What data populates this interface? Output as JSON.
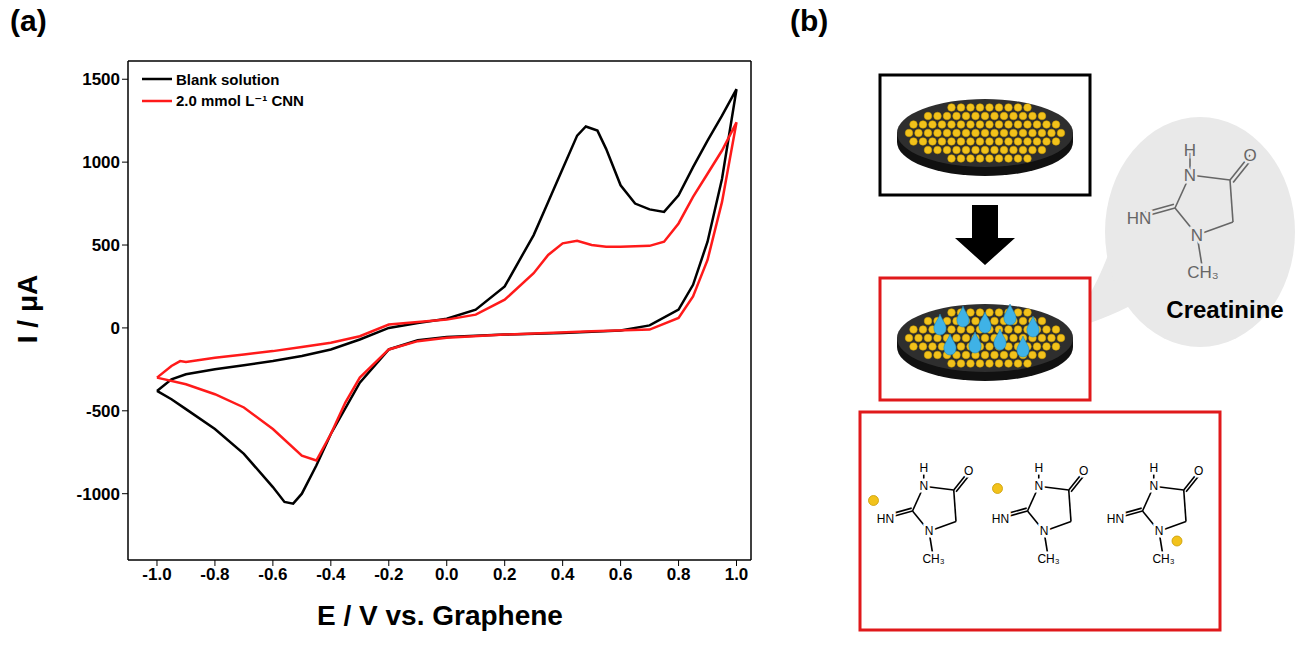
{
  "chart_data": {
    "type": "line",
    "title": "(a)",
    "x_label": "E / V vs. Graphene",
    "y_label": "I / μA",
    "xlim": [
      -1.1,
      1.05
    ],
    "ylim": [
      -1400,
      1610
    ],
    "xticks": [
      {
        "value": -1,
        "label": "-1.0"
      },
      {
        "value": -0.8,
        "label": "-0.8"
      },
      {
        "value": -0.6,
        "label": "-0.6"
      },
      {
        "value": -0.4,
        "label": "-0.4"
      },
      {
        "value": -0.2,
        "label": "-0.2"
      },
      {
        "value": 0,
        "label": "0.0"
      },
      {
        "value": 0.2,
        "label": "0.2"
      },
      {
        "value": 0.4,
        "label": "0.4"
      },
      {
        "value": 0.6,
        "label": "0.6"
      },
      {
        "value": 0.8,
        "label": "0.8"
      },
      {
        "value": 1,
        "label": "1.0"
      }
    ],
    "yticks": [
      -1000,
      -500,
      0,
      500,
      1000,
      1500
    ],
    "legend": "upper left",
    "series": [
      {
        "name": "Blank solution",
        "color": "#000000",
        "x": [
          -1.0,
          -0.95,
          -0.9,
          -0.8,
          -0.7,
          -0.6,
          -0.5,
          -0.4,
          -0.3,
          -0.2,
          -0.1,
          0.0,
          0.1,
          0.2,
          0.3,
          0.35,
          0.4,
          0.45,
          0.48,
          0.52,
          0.55,
          0.6,
          0.65,
          0.7,
          0.75,
          0.8,
          0.85,
          0.9,
          0.95,
          1.0,
          0.95,
          0.9,
          0.85,
          0.8,
          0.7,
          0.6,
          0.4,
          0.2,
          0.0,
          -0.1,
          -0.2,
          -0.3,
          -0.4,
          -0.45,
          -0.5,
          -0.53,
          -0.56,
          -0.6,
          -0.7,
          -0.8,
          -0.9,
          -0.95,
          -1.0
        ],
        "values": [
          -380,
          -310,
          -280,
          -250,
          -225,
          -200,
          -170,
          -130,
          -70,
          0,
          30,
          55,
          110,
          250,
          560,
          760,
          960,
          1160,
          1215,
          1190,
          1080,
          860,
          750,
          715,
          700,
          800,
          970,
          1130,
          1280,
          1440,
          900,
          520,
          260,
          110,
          15,
          -15,
          -30,
          -40,
          -55,
          -75,
          -130,
          -330,
          -640,
          -830,
          -1000,
          -1060,
          -1050,
          -960,
          -760,
          -610,
          -490,
          -430,
          -380
        ]
      },
      {
        "name": "2.0 mmol L⁻¹ CNN",
        "color": "#ff1a1a",
        "x": [
          -1.0,
          -0.95,
          -0.92,
          -0.9,
          -0.8,
          -0.7,
          -0.6,
          -0.5,
          -0.4,
          -0.3,
          -0.2,
          -0.1,
          0.0,
          0.1,
          0.2,
          0.3,
          0.35,
          0.4,
          0.45,
          0.5,
          0.55,
          0.6,
          0.7,
          0.75,
          0.8,
          0.85,
          0.9,
          0.95,
          1.0,
          0.95,
          0.9,
          0.85,
          0.8,
          0.7,
          0.5,
          0.2,
          0.0,
          -0.1,
          -0.2,
          -0.3,
          -0.35,
          -0.4,
          -0.45,
          -0.5,
          -0.6,
          -0.7,
          -0.8,
          -0.9,
          -1.0
        ],
        "values": [
          -300,
          -230,
          -200,
          -205,
          -180,
          -160,
          -140,
          -115,
          -90,
          -50,
          20,
          35,
          50,
          80,
          170,
          330,
          440,
          510,
          525,
          500,
          490,
          490,
          495,
          520,
          630,
          790,
          930,
          1070,
          1240,
          760,
          410,
          190,
          60,
          -10,
          -20,
          -40,
          -60,
          -80,
          -130,
          -300,
          -450,
          -640,
          -800,
          -770,
          -610,
          -480,
          -400,
          -340,
          -300
        ]
      }
    ]
  },
  "diagram": {
    "title": "(b)",
    "callout": "Creatinine",
    "structure_atoms": [
      "N",
      "H",
      "O",
      "HN",
      "N",
      "CH₃"
    ]
  }
}
